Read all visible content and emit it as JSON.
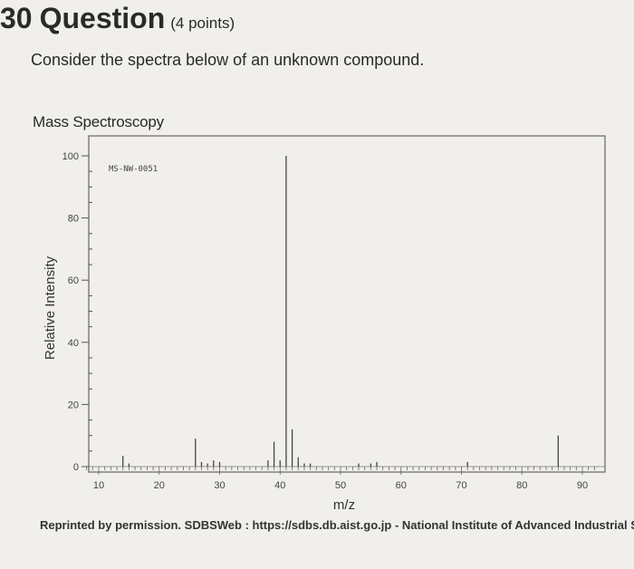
{
  "question": {
    "number": "30",
    "word": "Question",
    "points": "(4 points)",
    "prompt": "Consider the spectra below of an unknown compound."
  },
  "section_title": "Mass Spectroscopy",
  "credit": "Reprinted by permission. SDBSWeb : https://sdbs.db.aist.go.jp - National Institute of Advanced Industrial S",
  "chart_data": {
    "type": "bar",
    "title": "",
    "annotation": "MS-NW-0051",
    "xlabel": "m/z",
    "ylabel": "Relative Intensity",
    "xlim": [
      8,
      92
    ],
    "ylim": [
      0,
      100
    ],
    "x_ticks": [
      10,
      20,
      30,
      40,
      50,
      60,
      70,
      80,
      90
    ],
    "y_ticks": [
      0,
      20,
      40,
      60,
      80,
      100
    ],
    "grid": false,
    "bar_color": "#444444",
    "points": [
      {
        "x": 14,
        "y": 3.5
      },
      {
        "x": 15,
        "y": 1
      },
      {
        "x": 26,
        "y": 9
      },
      {
        "x": 27,
        "y": 1.5
      },
      {
        "x": 28,
        "y": 1
      },
      {
        "x": 29,
        "y": 2
      },
      {
        "x": 30,
        "y": 1.5
      },
      {
        "x": 38,
        "y": 2
      },
      {
        "x": 39,
        "y": 8
      },
      {
        "x": 40,
        "y": 2
      },
      {
        "x": 41,
        "y": 100
      },
      {
        "x": 42,
        "y": 12
      },
      {
        "x": 43,
        "y": 3
      },
      {
        "x": 44,
        "y": 1
      },
      {
        "x": 45,
        "y": 1
      },
      {
        "x": 53,
        "y": 1
      },
      {
        "x": 55,
        "y": 1
      },
      {
        "x": 56,
        "y": 1.5
      },
      {
        "x": 71,
        "y": 1.5
      },
      {
        "x": 86,
        "y": 10
      }
    ]
  }
}
